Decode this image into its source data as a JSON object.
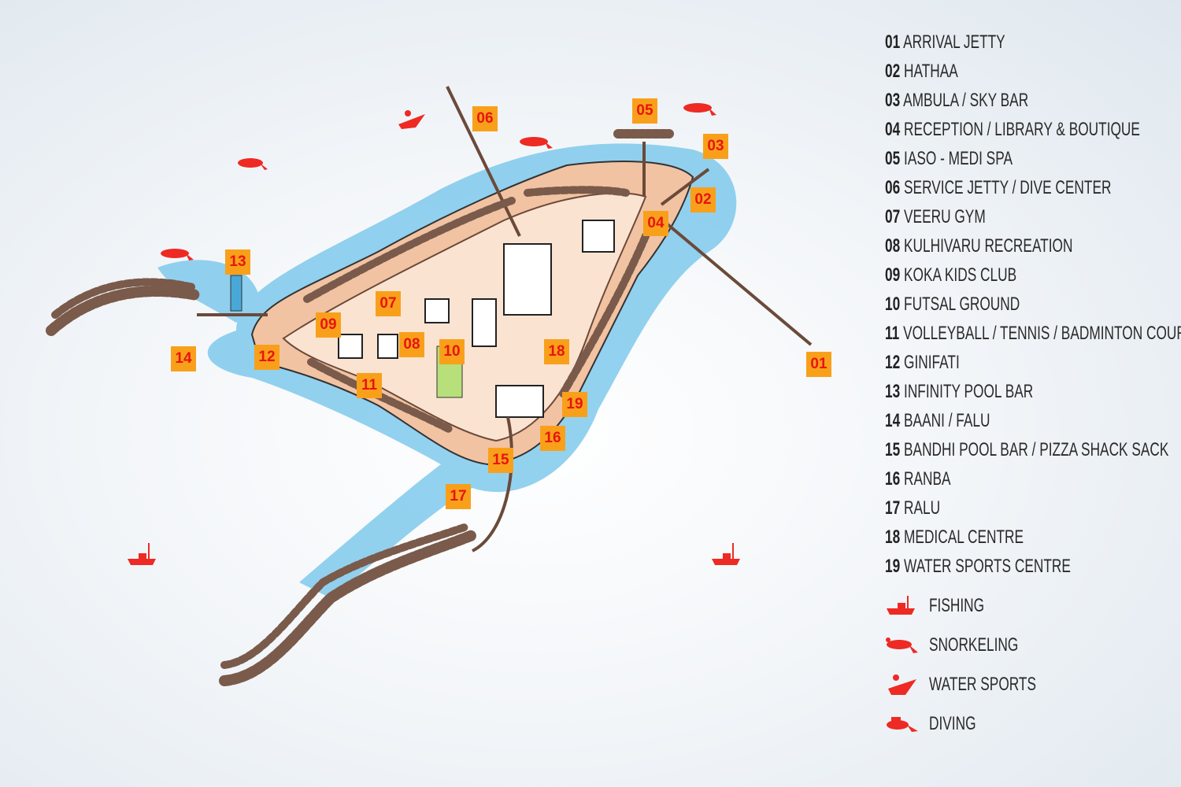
{
  "colors": {
    "marker_bg": "#f9a01b",
    "marker_text": "#e8140e",
    "activity_icon": "#ee2a24",
    "sand": "#f2c3a2",
    "lagoon": "#5cb8e4",
    "villa": "#7a5a4a"
  },
  "locations": [
    {
      "num": "01",
      "name": "ARRIVAL JETTY"
    },
    {
      "num": "02",
      "name": "HATHAA"
    },
    {
      "num": "03",
      "name": "AMBULA / SKY BAR"
    },
    {
      "num": "04",
      "name": "RECEPTION / LIBRARY & BOUTIQUE"
    },
    {
      "num": "05",
      "name": "IASO - MEDI SPA"
    },
    {
      "num": "06",
      "name": "SERVICE JETTY / DIVE CENTER"
    },
    {
      "num": "07",
      "name": "VEERU GYM"
    },
    {
      "num": "08",
      "name": "KULHIVARU RECREATION"
    },
    {
      "num": "09",
      "name": "KOKA KIDS CLUB"
    },
    {
      "num": "10",
      "name": "FUTSAL GROUND"
    },
    {
      "num": "11",
      "name": "VOLLEYBALL / TENNIS / BADMINTON COURT"
    },
    {
      "num": "12",
      "name": "GINIFATI"
    },
    {
      "num": "13",
      "name": "INFINITY POOL BAR"
    },
    {
      "num": "14",
      "name": "BAANI / FALU"
    },
    {
      "num": "15",
      "name": "BANDHI POOL BAR / PIZZA SHACK SACK"
    },
    {
      "num": "16",
      "name": "RANBA"
    },
    {
      "num": "17",
      "name": "RALU"
    },
    {
      "num": "18",
      "name": "MEDICAL CENTRE"
    },
    {
      "num": "19",
      "name": "WATER SPORTS CENTRE"
    }
  ],
  "activities": [
    {
      "icon": "fishing-boat-icon",
      "label": "FISHING"
    },
    {
      "icon": "snorkeler-icon",
      "label": "SNORKELING"
    },
    {
      "icon": "jet-ski-icon",
      "label": "WATER SPORTS"
    },
    {
      "icon": "diver-icon",
      "label": "DIVING"
    }
  ]
}
